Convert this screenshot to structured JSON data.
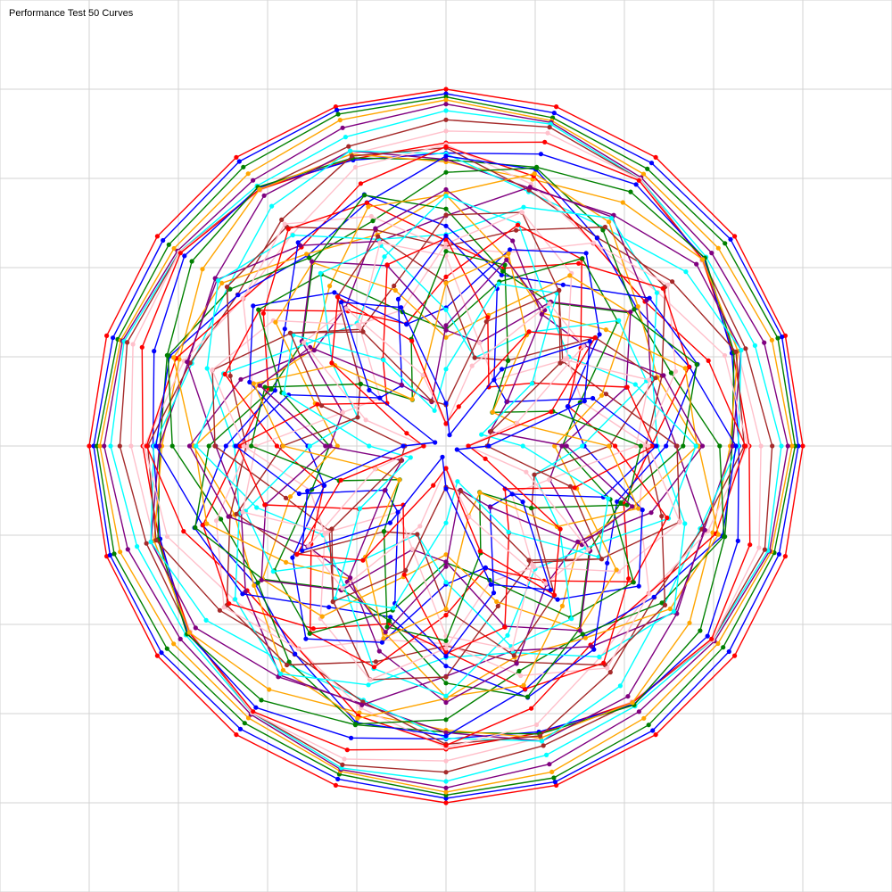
{
  "chart_data": {
    "type": "line",
    "title": "Performance Test 50 Curves",
    "xlabel": "",
    "ylabel": "",
    "xlim": [
      -5,
      5
    ],
    "ylim": [
      -5,
      5
    ],
    "grid": true,
    "grid_step": 1,
    "grid_color": "#d3d3d3",
    "legend": "none",
    "palette": [
      "#ff0000",
      "#0000ff",
      "#008000",
      "#ffa500",
      "#800080",
      "#00ffff",
      "#a52a2a",
      "#ffc0cb"
    ],
    "curve_count": 50,
    "points_per_curve": 20,
    "outer_radius": 4,
    "radius_step": 0.06,
    "ripple_amplitude_step": 0.02,
    "ripple_frequency": 4,
    "closed": true,
    "equation": "r_i(θ) = (4 - 0.06·i) + 0.02·i·sin(4·θ + i/2), θ = 2πk/20, k = 0..19, i = 0..49"
  }
}
